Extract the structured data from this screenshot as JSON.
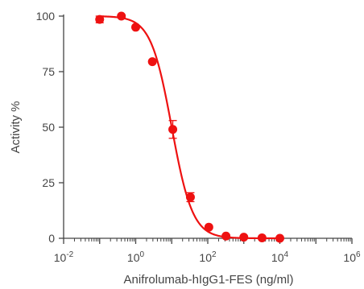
{
  "chart_data": {
    "type": "scatter",
    "title": "",
    "xlabel": "Anifrolumab-hIgG1-FES (ng/ml)",
    "ylabel": "Activity %",
    "x_scale": "log10",
    "xlim": [
      0.01,
      1000000
    ],
    "ylim": [
      0,
      100
    ],
    "x_ticks": [
      {
        "base": "10",
        "exp": "-2"
      },
      {
        "base": "10",
        "exp": "0"
      },
      {
        "base": "10",
        "exp": "2"
      },
      {
        "base": "10",
        "exp": "4"
      },
      {
        "base": "10",
        "exp": "6"
      }
    ],
    "y_ticks": [
      "0",
      "25",
      "50",
      "75",
      "100"
    ],
    "grid": false,
    "legend": "none",
    "series": [
      {
        "color": "#ee1111",
        "points": [
          {
            "x": 0.1,
            "y": 98.5,
            "err": 1.5
          },
          {
            "x": 0.4,
            "y": 100,
            "err": 0.5
          },
          {
            "x": 1.0,
            "y": 95,
            "err": 0.5
          },
          {
            "x": 2.9,
            "y": 79.5,
            "err": 0.5
          },
          {
            "x": 10.7,
            "y": 49,
            "err": 4
          },
          {
            "x": 33,
            "y": 18.5,
            "err": 2
          },
          {
            "x": 107,
            "y": 5,
            "err": 0.5
          },
          {
            "x": 320,
            "y": 1,
            "err": 0.5
          },
          {
            "x": 1000,
            "y": 0.5,
            "err": 0.5
          },
          {
            "x": 3200,
            "y": 0.2,
            "err": 0.3
          },
          {
            "x": 10000,
            "y": 0,
            "err": 0.3
          }
        ],
        "fit": {
          "model": "4PL",
          "top": 100,
          "bottom": 0,
          "ec50": 10,
          "hill": 1.5
        }
      }
    ]
  }
}
